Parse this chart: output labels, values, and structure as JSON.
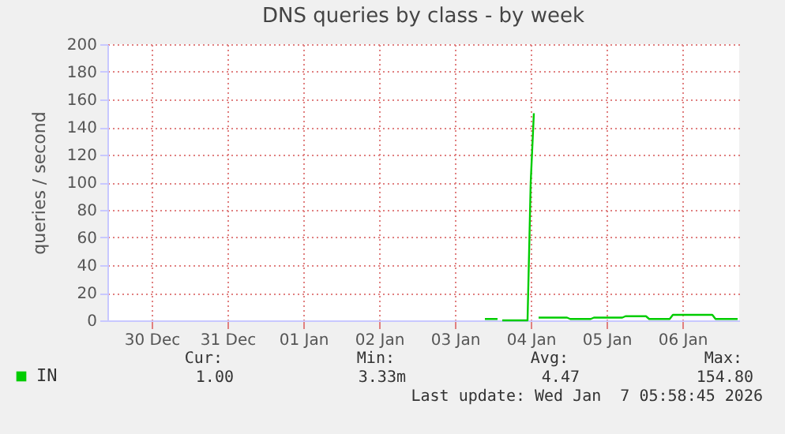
{
  "chart_data": {
    "type": "line",
    "title": "DNS queries by class - by week",
    "ylabel": "queries / second",
    "xlim": [
      "2025-12-29T22:00",
      "2026-01-07T06:00"
    ],
    "xticks": [
      {
        "value": "2025-12-30T12:00",
        "label": "30 Dec"
      },
      {
        "value": "2025-12-31T12:00",
        "label": "31 Dec"
      },
      {
        "value": "2026-01-01T12:00",
        "label": "01 Jan"
      },
      {
        "value": "2026-01-02T12:00",
        "label": "02 Jan"
      },
      {
        "value": "2026-01-03T12:00",
        "label": "03 Jan"
      },
      {
        "value": "2026-01-04T12:00",
        "label": "04 Jan"
      },
      {
        "value": "2026-01-05T12:00",
        "label": "05 Jan"
      },
      {
        "value": "2026-01-06T12:00",
        "label": "06 Jan"
      }
    ],
    "ylim": [
      0,
      200
    ],
    "yticks": [
      0,
      20,
      40,
      60,
      80,
      100,
      120,
      140,
      160,
      180,
      200
    ],
    "x": [
      "2026-01-03T21:30",
      "2026-01-04T01:30",
      "2026-01-04T02:00",
      "2026-01-04T03:00",
      "2026-01-04T07:00",
      "2026-01-04T11:00",
      "2026-01-04T12:00",
      "2026-01-04T13:00",
      "2026-01-04T13:30",
      "2026-01-04T14:30",
      "2026-01-04T23:30",
      "2026-01-05T00:30",
      "2026-01-05T07:00",
      "2026-01-05T08:00",
      "2026-01-05T17:00",
      "2026-01-05T18:00",
      "2026-01-06T00:30",
      "2026-01-06T01:30",
      "2026-01-06T08:00",
      "2026-01-06T09:00",
      "2026-01-06T21:30",
      "2026-01-06T22:30",
      "2026-01-07T05:30"
    ],
    "series": [
      {
        "name": "IN",
        "color": "#00cc00",
        "values": [
          1,
          1,
          null,
          0,
          0,
          0,
          100,
          150,
          null,
          2,
          2,
          1,
          1,
          2,
          2,
          3,
          3,
          1,
          1,
          4,
          4,
          1,
          1
        ]
      }
    ],
    "grid": true,
    "legend": "bottom left",
    "annotations": [
      "Cur:",
      "Min:",
      "Avg:",
      "Max:",
      "1.00",
      "3.33m",
      "4.47",
      "154.80",
      "Last update: Wed Jan  7 05:58:45 2026"
    ]
  }
}
